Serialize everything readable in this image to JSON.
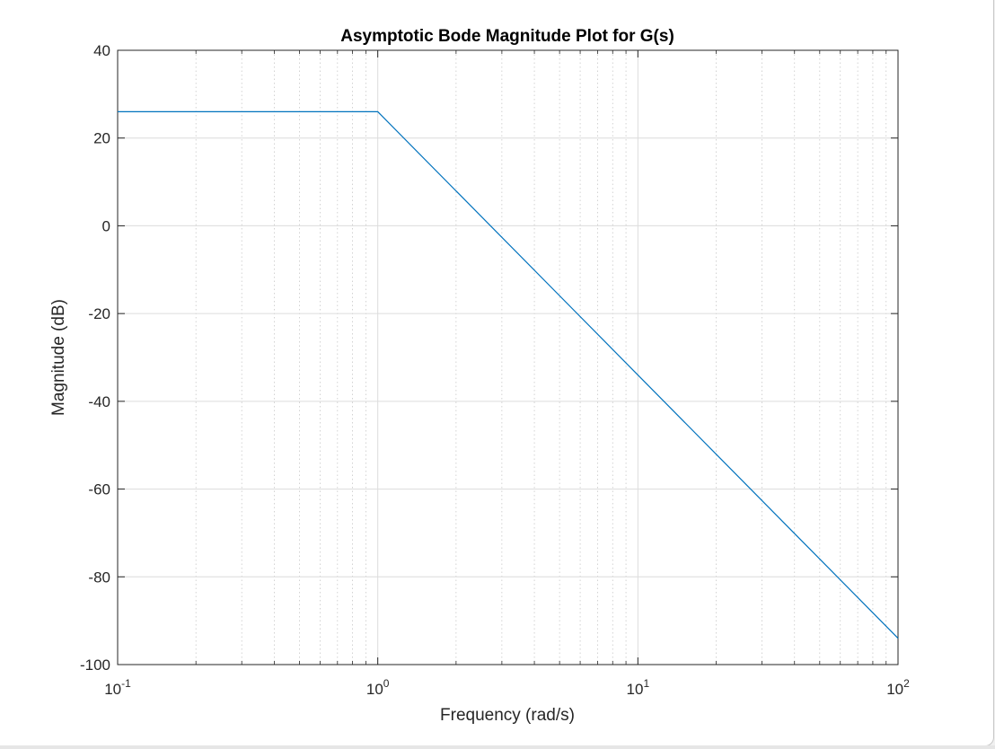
{
  "chart_data": {
    "type": "line",
    "title": "Asymptotic Bode Magnitude Plot for G(s)",
    "xlabel": "Frequency (rad/s)",
    "ylabel": "Magnitude (dB)",
    "xscale": "log",
    "xlim": [
      0.1,
      100
    ],
    "ylim": [
      -100,
      40
    ],
    "grid": "on",
    "x_ticks": [
      {
        "base": "10",
        "exp": "-1",
        "value": 0.1
      },
      {
        "base": "10",
        "exp": "0",
        "value": 1
      },
      {
        "base": "10",
        "exp": "1",
        "value": 10
      },
      {
        "base": "10",
        "exp": "2",
        "value": 100
      }
    ],
    "y_ticks": [
      {
        "label": "40",
        "value": 40
      },
      {
        "label": "20",
        "value": 20
      },
      {
        "label": "0",
        "value": 0
      },
      {
        "label": "-20",
        "value": -20
      },
      {
        "label": "-40",
        "value": -40
      },
      {
        "label": "-60",
        "value": -60
      },
      {
        "label": "-80",
        "value": -80
      },
      {
        "label": "-100",
        "value": -100
      }
    ],
    "series": [
      {
        "color": "#0072bd",
        "x": [
          0.1,
          1,
          100
        ],
        "y": [
          26,
          26,
          -94
        ]
      }
    ]
  }
}
